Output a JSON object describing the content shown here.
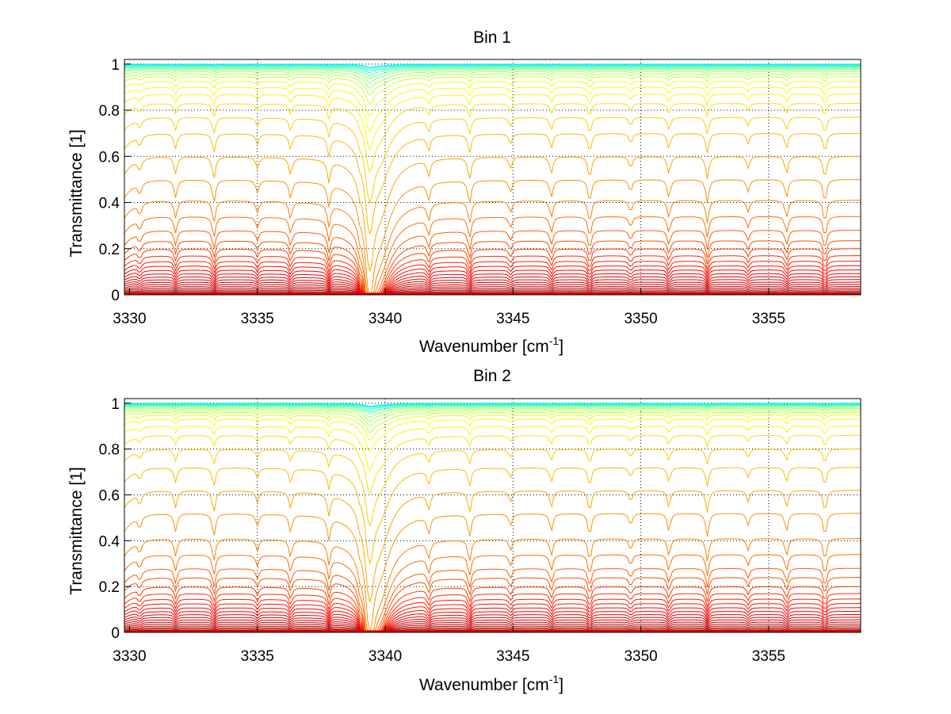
{
  "chart_data": [
    {
      "type": "line",
      "title": "Bin 1",
      "xlabel": "Wavenumber [cm",
      "xlabel_superscript": "-1",
      "xlabel_close": "]",
      "ylabel": "Transmittance [1]",
      "xlim": [
        3329.8,
        3358.6
      ],
      "ylim": [
        0,
        1.02
      ],
      "xticks": [
        3330,
        3335,
        3340,
        3345,
        3350,
        3355
      ],
      "xtick_labels": [
        "3330",
        "3335",
        "3340",
        "3345",
        "3350",
        "3355"
      ],
      "yticks": [
        0,
        0.2,
        0.4,
        0.6,
        0.8,
        1
      ],
      "ytick_labels": [
        "0",
        "0.2",
        "0.4",
        "0.6",
        "0.8",
        "1"
      ],
      "grid": true,
      "grid_style": "dotted",
      "series_count": 40,
      "series_baselines": [
        0.001,
        0.003,
        0.006,
        0.01,
        0.015,
        0.021,
        0.028,
        0.036,
        0.045,
        0.055,
        0.066,
        0.078,
        0.092,
        0.108,
        0.126,
        0.146,
        0.17,
        0.2,
        0.235,
        0.28,
        0.34,
        0.41,
        0.5,
        0.6,
        0.7,
        0.77,
        0.83,
        0.87,
        0.9,
        0.925,
        0.945,
        0.958,
        0.968,
        0.976,
        0.982,
        0.987,
        0.991,
        0.994,
        0.997,
        0.999
      ],
      "main_absorption_center": 3339.4,
      "absorption_lines": [
        3330.4,
        3331.8,
        3333.3,
        3335.0,
        3336.3,
        3337.8,
        3339.0,
        3341.7,
        3343.3,
        3344.9,
        3346.5,
        3348.0,
        3349.6,
        3351.1,
        3352.6,
        3354.2,
        3355.7,
        3357.2
      ],
      "colormap": "autumn-to-jet"
    },
    {
      "type": "line",
      "title": "Bin 2",
      "xlabel": "Wavenumber [cm",
      "xlabel_superscript": "-1",
      "xlabel_close": "]",
      "ylabel": "Transmittance [1]",
      "xlim": [
        3329.8,
        3358.6
      ],
      "ylim": [
        0,
        1.02
      ],
      "xticks": [
        3330,
        3335,
        3340,
        3345,
        3350,
        3355
      ],
      "xtick_labels": [
        "3330",
        "3335",
        "3340",
        "3345",
        "3350",
        "3355"
      ],
      "yticks": [
        0,
        0.2,
        0.4,
        0.6,
        0.8,
        1
      ],
      "ytick_labels": [
        "0",
        "0.2",
        "0.4",
        "0.6",
        "0.8",
        "1"
      ],
      "grid": true,
      "grid_style": "dotted",
      "series_count": 40,
      "series_baselines": [
        0.001,
        0.003,
        0.006,
        0.01,
        0.015,
        0.021,
        0.028,
        0.036,
        0.045,
        0.055,
        0.066,
        0.078,
        0.092,
        0.108,
        0.126,
        0.146,
        0.17,
        0.2,
        0.24,
        0.28,
        0.34,
        0.41,
        0.52,
        0.62,
        0.72,
        0.8,
        0.86,
        0.9,
        0.93,
        0.948,
        0.96,
        0.97,
        0.977,
        0.983,
        0.988,
        0.991,
        0.994,
        0.996,
        0.998,
        0.999
      ],
      "main_absorption_center": 3339.4,
      "absorption_lines": [
        3330.4,
        3331.8,
        3333.3,
        3335.0,
        3336.3,
        3337.8,
        3339.0,
        3341.7,
        3343.3,
        3344.9,
        3346.5,
        3348.0,
        3349.6,
        3351.1,
        3352.6,
        3354.2,
        3355.7,
        3357.2
      ],
      "colormap": "autumn-to-jet"
    }
  ]
}
